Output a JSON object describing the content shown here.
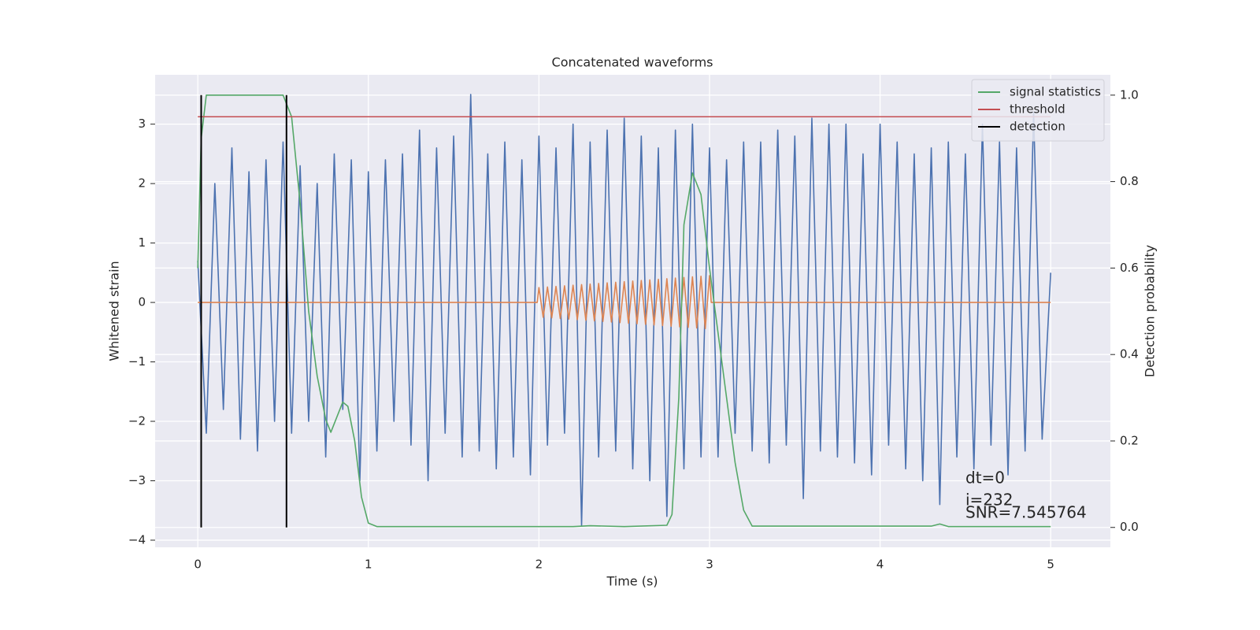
{
  "chart_data": {
    "type": "line",
    "title": "Concatenated waveforms",
    "xlabel": "Time (s)",
    "ylabel": "Whitened strain",
    "y2label": "Detection probability",
    "xlim": [
      -0.25,
      5.35
    ],
    "ylim": [
      -4.12,
      3.83
    ],
    "y2lim": [
      -0.046,
      1.047
    ],
    "xticks": [
      0,
      1,
      2,
      3,
      4,
      5
    ],
    "yticks": [
      {
        "value": -4,
        "label": "−4"
      },
      {
        "value": -3,
        "label": "−3"
      },
      {
        "value": -2,
        "label": "−2"
      },
      {
        "value": -1,
        "label": "−1"
      },
      0,
      1,
      2,
      3
    ],
    "y2ticks": [
      {
        "value": 0,
        "label": "0.0"
      },
      0.2,
      0.4,
      0.6,
      0.8,
      {
        "value": 1,
        "label": "1.0"
      }
    ],
    "grid": true,
    "legend": "upper right",
    "series": [
      {
        "color": "#4c72b0",
        "x": [
          0,
          0.05,
          0.1,
          0.15,
          0.2,
          0.25,
          0.3,
          0.35,
          0.4,
          0.45,
          0.5,
          0.55,
          0.6,
          0.65,
          0.7,
          0.75,
          0.8,
          0.85,
          0.9,
          0.95,
          1.0,
          1.05,
          1.1,
          1.15,
          1.2,
          1.25,
          1.3,
          1.35,
          1.4,
          1.45,
          1.5,
          1.55,
          1.6,
          1.65,
          1.7,
          1.75,
          1.8,
          1.85,
          1.9,
          1.95,
          2.0,
          2.05,
          2.1,
          2.15,
          2.2,
          2.25,
          2.3,
          2.35,
          2.4,
          2.45,
          2.5,
          2.55,
          2.6,
          2.65,
          2.7,
          2.75,
          2.8,
          2.85,
          2.9,
          2.95,
          3.0,
          3.05,
          3.1,
          3.15,
          3.2,
          3.25,
          3.3,
          3.35,
          3.4,
          3.45,
          3.5,
          3.55,
          3.6,
          3.65,
          3.7,
          3.75,
          3.8,
          3.85,
          3.9,
          3.95,
          4.0,
          4.05,
          4.1,
          4.15,
          4.2,
          4.25,
          4.3,
          4.35,
          4.4,
          4.45,
          4.5,
          4.55,
          4.6,
          4.65,
          4.7,
          4.75,
          4.8,
          4.85,
          4.9,
          4.95,
          5.0
        ],
        "values": [
          0.7,
          -2.2,
          2.0,
          -1.8,
          2.6,
          -2.3,
          2.2,
          -2.5,
          2.4,
          -2.0,
          2.7,
          -2.2,
          2.3,
          -2.0,
          2.0,
          -2.6,
          2.5,
          -1.8,
          2.4,
          -3.0,
          2.2,
          -2.5,
          2.4,
          -2.0,
          2.5,
          -2.4,
          2.9,
          -3.0,
          2.6,
          -2.2,
          2.8,
          -2.6,
          3.5,
          -2.5,
          2.5,
          -2.8,
          2.7,
          -2.6,
          2.4,
          -2.9,
          2.8,
          -2.4,
          2.6,
          -2.2,
          3.0,
          -3.75,
          2.7,
          -2.6,
          2.9,
          -2.5,
          3.1,
          -2.8,
          2.8,
          -3.0,
          2.6,
          -3.6,
          2.9,
          -2.8,
          3.0,
          -2.6,
          2.6,
          -2.6,
          2.4,
          -2.2,
          2.7,
          -2.5,
          2.7,
          -2.7,
          2.9,
          -2.4,
          2.8,
          -3.3,
          3.1,
          -2.5,
          3.0,
          -2.6,
          3.0,
          -2.7,
          2.5,
          -2.9,
          3.0,
          -2.4,
          2.7,
          -2.8,
          2.5,
          -3.0,
          2.6,
          -3.4,
          2.7,
          -2.6,
          2.5,
          -2.8,
          3.0,
          -2.4,
          2.7,
          -2.9,
          2.6,
          -2.5,
          3.2,
          -2.3,
          0.5
        ]
      },
      {
        "color": "#dd8452",
        "x": [
          0,
          1.99,
          2.0,
          2.025,
          2.05,
          2.075,
          2.1,
          2.125,
          2.15,
          2.175,
          2.2,
          2.225,
          2.25,
          2.275,
          2.3,
          2.325,
          2.35,
          2.375,
          2.4,
          2.425,
          2.45,
          2.475,
          2.5,
          2.525,
          2.55,
          2.575,
          2.6,
          2.625,
          2.65,
          2.675,
          2.7,
          2.725,
          2.75,
          2.775,
          2.8,
          2.825,
          2.85,
          2.875,
          2.9,
          2.925,
          2.95,
          2.975,
          3.0,
          3.01,
          5
        ],
        "values": [
          0,
          0,
          0.25,
          -0.25,
          0.26,
          -0.26,
          0.27,
          -0.27,
          0.28,
          -0.28,
          0.29,
          -0.29,
          0.3,
          -0.3,
          0.31,
          -0.31,
          0.32,
          -0.32,
          0.33,
          -0.33,
          0.34,
          -0.34,
          0.35,
          -0.35,
          0.36,
          -0.36,
          0.37,
          -0.37,
          0.38,
          -0.38,
          0.39,
          -0.39,
          0.4,
          -0.4,
          0.41,
          -0.41,
          0.42,
          -0.42,
          0.43,
          -0.43,
          0.44,
          -0.44,
          0.45,
          0,
          0
        ]
      },
      {
        "name": "signal statistics",
        "color": "#55a868",
        "axis": "y2",
        "x": [
          0,
          0.02,
          0.05,
          0.1,
          0.5,
          0.55,
          0.6,
          0.65,
          0.7,
          0.75,
          0.78,
          0.85,
          0.88,
          0.92,
          0.96,
          1.0,
          1.05,
          2.2,
          2.3,
          2.5,
          2.75,
          2.78,
          2.82,
          2.85,
          2.9,
          2.95,
          3.0,
          3.05,
          3.1,
          3.15,
          3.2,
          3.25,
          4.3,
          4.35,
          4.4,
          5.0
        ],
        "values": [
          0.6,
          0.9,
          1.0,
          1.0,
          1.0,
          0.95,
          0.75,
          0.5,
          0.35,
          0.25,
          0.22,
          0.29,
          0.28,
          0.2,
          0.07,
          0.01,
          0.002,
          0.002,
          0.004,
          0.002,
          0.005,
          0.03,
          0.3,
          0.7,
          0.82,
          0.77,
          0.6,
          0.45,
          0.3,
          0.15,
          0.04,
          0.003,
          0.003,
          0.008,
          0.002,
          0.002
        ]
      },
      {
        "name": "threshold",
        "color": "#c44e52",
        "axis": "y2",
        "x": [
          0,
          5
        ],
        "values": [
          0.95,
          0.95
        ]
      },
      {
        "name": "detection",
        "color": "#000000",
        "axis": "y2",
        "type": "vlines",
        "x": [
          0.02,
          0.52
        ],
        "values": [
          1,
          1
        ]
      }
    ],
    "annotations": [
      "dt=0",
      "i=232",
      "SNR=7.545764"
    ]
  }
}
